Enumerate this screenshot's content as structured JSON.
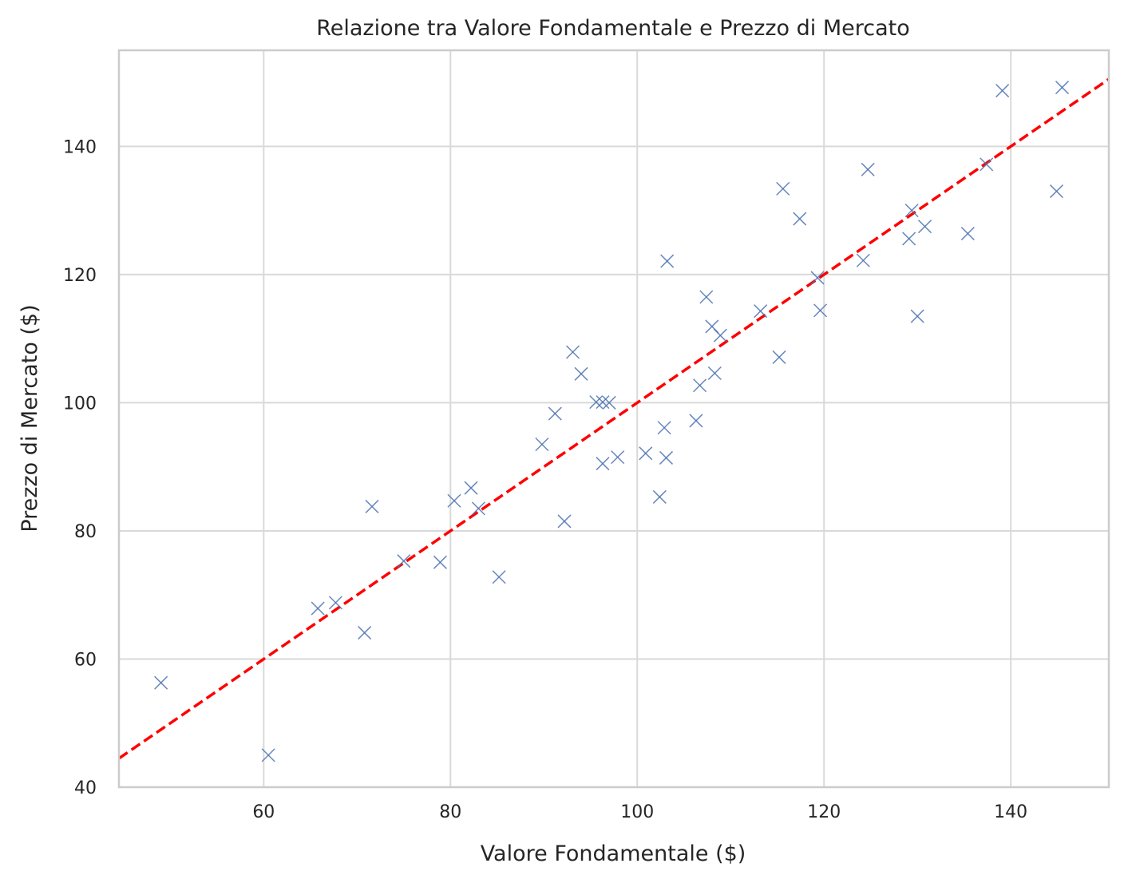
{
  "chart_data": {
    "type": "scatter",
    "title": "Relazione tra Valore Fondamentale e Prezzo di Mercato",
    "xlabel": "Valore Fondamentale ($)",
    "ylabel": "Prezzo di Mercato ($)",
    "xlim": [
      44.5,
      150.5
    ],
    "ylim": [
      40,
      155
    ],
    "x_ticks": [
      60,
      80,
      100,
      120,
      140
    ],
    "y_ticks": [
      40,
      60,
      80,
      100,
      120,
      140
    ],
    "x_tick_labels": [
      "60",
      "80",
      "100",
      "120",
      "140"
    ],
    "y_tick_labels": [
      "40",
      "60",
      "80",
      "100",
      "120",
      "140"
    ],
    "grid": true,
    "marker": "x",
    "colors": {
      "points": "#4c72b0",
      "trend_line": "#ff0000",
      "grid": "#d9d9d9",
      "spine": "#cccccc"
    },
    "trend_line": {
      "style": "dashed",
      "x": [
        44.5,
        150.5
      ],
      "y": [
        44.5,
        150.5
      ]
    },
    "series": [
      {
        "x": [
          49.0,
          60.5,
          65.8,
          67.7,
          70.8,
          71.6,
          75.0,
          78.9,
          80.4,
          82.2,
          83.0,
          85.2,
          89.8,
          91.2,
          92.2,
          93.1,
          94.0,
          95.6,
          96.3,
          96.3,
          97.0,
          97.9,
          100.9,
          102.4,
          102.9,
          103.1,
          103.2,
          106.3,
          106.7,
          107.4,
          108.0,
          108.3,
          108.9,
          113.2,
          115.2,
          115.6,
          117.4,
          119.3,
          119.6,
          124.2,
          124.7,
          129.1,
          129.4,
          130.0,
          130.8,
          135.4,
          137.4,
          139.1,
          144.9,
          145.5
        ],
        "y": [
          56.3,
          45.0,
          67.9,
          68.8,
          64.1,
          83.8,
          75.3,
          75.1,
          84.7,
          86.7,
          83.5,
          72.8,
          93.5,
          98.3,
          81.5,
          107.9,
          104.5,
          100.1,
          100.1,
          90.5,
          100.0,
          91.5,
          92.1,
          85.3,
          96.1,
          91.4,
          122.1,
          97.2,
          102.7,
          116.5,
          111.9,
          104.6,
          110.5,
          114.3,
          107.1,
          133.4,
          128.7,
          119.5,
          114.4,
          122.2,
          136.4,
          125.6,
          130.0,
          113.5,
          127.5,
          126.4,
          137.2,
          148.7,
          133.0,
          149.2
        ]
      }
    ]
  }
}
